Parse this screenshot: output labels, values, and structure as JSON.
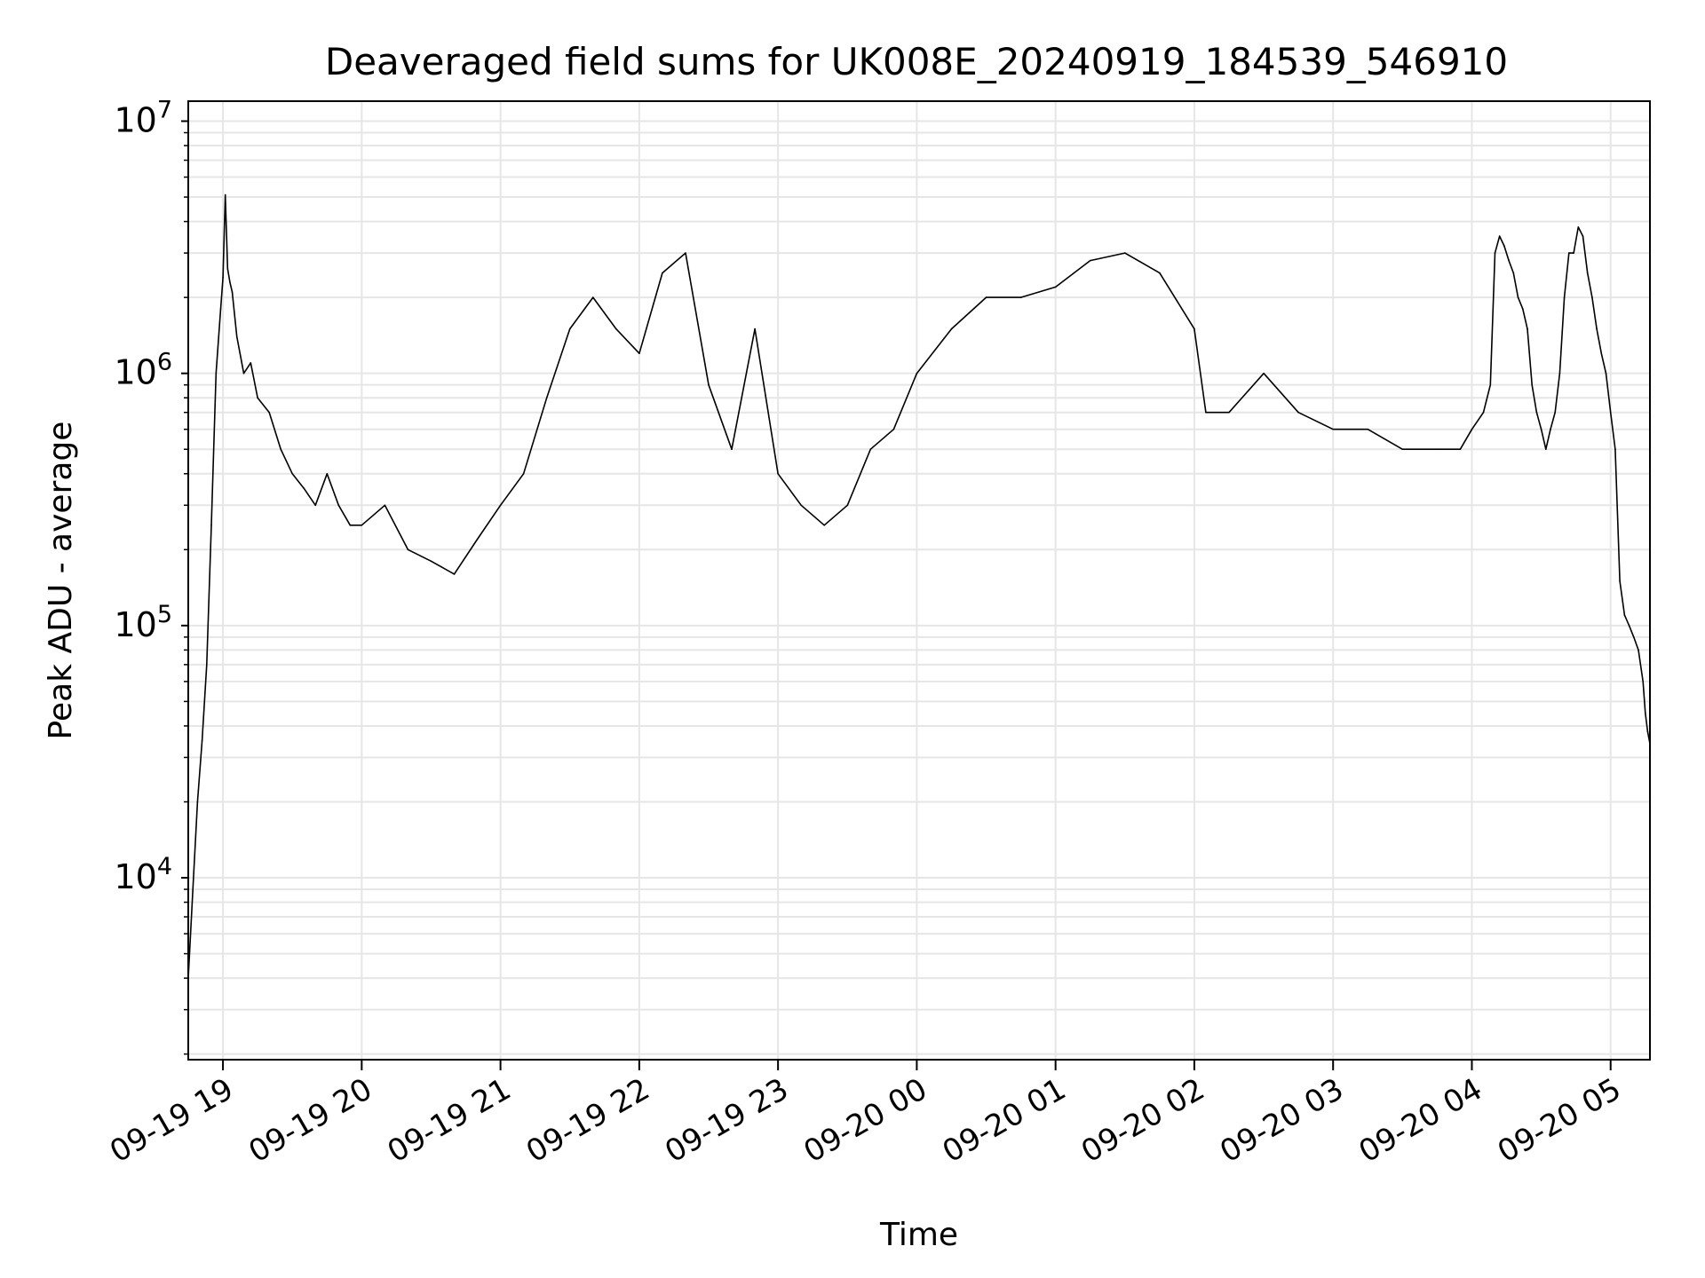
{
  "chart_data": {
    "type": "line",
    "title": "Deaveraged field sums for UK008E_20240919_184539_546910",
    "xlabel": "Time",
    "ylabel": "Peak ADU - average",
    "yscale": "log",
    "ylim": [
      1900,
      12000000
    ],
    "xlim": [
      "2024-09-19T18:45:00",
      "2024-09-20T05:17:00"
    ],
    "grid": true,
    "line_color": "#000000",
    "x_tick_labels": [
      "09-19 19",
      "09-19 20",
      "09-19 21",
      "09-19 22",
      "09-19 23",
      "09-20 00",
      "09-20 01",
      "09-20 02",
      "09-20 03",
      "09-20 04",
      "09-20 05"
    ],
    "x_ticks": [
      "2024-09-19T19:00:00",
      "2024-09-19T20:00:00",
      "2024-09-19T21:00:00",
      "2024-09-19T22:00:00",
      "2024-09-19T23:00:00",
      "2024-09-20T00:00:00",
      "2024-09-20T01:00:00",
      "2024-09-20T02:00:00",
      "2024-09-20T03:00:00",
      "2024-09-20T04:00:00",
      "2024-09-20T05:00:00"
    ],
    "y_ticks": [
      {
        "value": 10000,
        "base": "10",
        "exp": "4"
      },
      {
        "value": 100000,
        "base": "10",
        "exp": "5"
      },
      {
        "value": 1000000,
        "base": "10",
        "exp": "6"
      },
      {
        "value": 10000000,
        "base": "10",
        "exp": "7"
      }
    ],
    "series": [
      {
        "x": [
          "2024-09-19T18:45:00",
          "2024-09-19T18:47:00",
          "2024-09-19T18:49:00",
          "2024-09-19T18:51:00",
          "2024-09-19T18:53:00",
          "2024-09-19T18:55:00",
          "2024-09-19T18:57:00",
          "2024-09-19T18:59:00",
          "2024-09-19T19:00:00",
          "2024-09-19T19:01:00",
          "2024-09-19T19:02:00",
          "2024-09-19T19:03:00",
          "2024-09-19T19:04:00",
          "2024-09-19T19:06:00",
          "2024-09-19T19:09:00",
          "2024-09-19T19:12:00",
          "2024-09-19T19:15:00",
          "2024-09-19T19:20:00",
          "2024-09-19T19:25:00",
          "2024-09-19T19:30:00",
          "2024-09-19T19:35:00",
          "2024-09-19T19:40:00",
          "2024-09-19T19:45:00",
          "2024-09-19T19:50:00",
          "2024-09-19T19:55:00",
          "2024-09-19T20:00:00",
          "2024-09-19T20:10:00",
          "2024-09-19T20:20:00",
          "2024-09-19T20:30:00",
          "2024-09-19T20:40:00",
          "2024-09-19T20:50:00",
          "2024-09-19T21:00:00",
          "2024-09-19T21:10:00",
          "2024-09-19T21:20:00",
          "2024-09-19T21:30:00",
          "2024-09-19T21:40:00",
          "2024-09-19T21:50:00",
          "2024-09-19T22:00:00",
          "2024-09-19T22:10:00",
          "2024-09-19T22:20:00",
          "2024-09-19T22:30:00",
          "2024-09-19T22:40:00",
          "2024-09-19T22:50:00",
          "2024-09-19T23:00:00",
          "2024-09-19T23:10:00",
          "2024-09-19T23:20:00",
          "2024-09-19T23:30:00",
          "2024-09-19T23:40:00",
          "2024-09-19T23:50:00",
          "2024-09-20T00:00:00",
          "2024-09-20T00:15:00",
          "2024-09-20T00:30:00",
          "2024-09-20T00:45:00",
          "2024-09-20T01:00:00",
          "2024-09-20T01:15:00",
          "2024-09-20T01:30:00",
          "2024-09-20T01:45:00",
          "2024-09-20T02:00:00",
          "2024-09-20T02:05:00",
          "2024-09-20T02:15:00",
          "2024-09-20T02:30:00",
          "2024-09-20T02:45:00",
          "2024-09-20T03:00:00",
          "2024-09-20T03:15:00",
          "2024-09-20T03:30:00",
          "2024-09-20T03:45:00",
          "2024-09-20T03:55:00",
          "2024-09-20T04:00:00",
          "2024-09-20T04:05:00",
          "2024-09-20T04:08:00",
          "2024-09-20T04:10:00",
          "2024-09-20T04:12:00",
          "2024-09-20T04:14:00",
          "2024-09-20T04:16:00",
          "2024-09-20T04:18:00",
          "2024-09-20T04:20:00",
          "2024-09-20T04:22:00",
          "2024-09-20T04:24:00",
          "2024-09-20T04:26:00",
          "2024-09-20T04:28:00",
          "2024-09-20T04:30:00",
          "2024-09-20T04:32:00",
          "2024-09-20T04:34:00",
          "2024-09-20T04:36:00",
          "2024-09-20T04:38:00",
          "2024-09-20T04:40:00",
          "2024-09-20T04:42:00",
          "2024-09-20T04:44:00",
          "2024-09-20T04:46:00",
          "2024-09-20T04:48:00",
          "2024-09-20T04:50:00",
          "2024-09-20T04:52:00",
          "2024-09-20T04:54:00",
          "2024-09-20T04:56:00",
          "2024-09-20T04:58:00",
          "2024-09-20T05:00:00",
          "2024-09-20T05:02:00",
          "2024-09-20T05:04:00",
          "2024-09-20T05:06:00",
          "2024-09-20T05:08:00",
          "2024-09-20T05:10:00",
          "2024-09-20T05:12:00",
          "2024-09-20T05:14:00",
          "2024-09-20T05:15:00",
          "2024-09-20T05:16:00",
          "2024-09-20T05:17:00"
        ],
        "y": [
          4000,
          9000,
          20000,
          35000,
          70000,
          250000,
          1000000,
          1800000,
          2400000,
          5100000,
          2600000,
          2300000,
          2100000,
          1400000,
          1000000,
          1100000,
          800000,
          700000,
          500000,
          400000,
          350000,
          300000,
          400000,
          300000,
          250000,
          250000,
          300000,
          200000,
          180000,
          160000,
          220000,
          300000,
          400000,
          800000,
          1500000,
          2000000,
          1500000,
          1200000,
          2500000,
          3000000,
          900000,
          500000,
          1500000,
          400000,
          300000,
          250000,
          300000,
          500000,
          600000,
          1000000,
          1500000,
          2000000,
          2000000,
          2200000,
          2800000,
          3000000,
          2500000,
          1500000,
          700000,
          700000,
          1000000,
          700000,
          600000,
          600000,
          500000,
          500000,
          500000,
          600000,
          700000,
          900000,
          3000000,
          3500000,
          3200000,
          2800000,
          2500000,
          2000000,
          1800000,
          1500000,
          900000,
          700000,
          600000,
          500000,
          600000,
          700000,
          1000000,
          2000000,
          3000000,
          3000000,
          3800000,
          3500000,
          2500000,
          2000000,
          1500000,
          1200000,
          1000000,
          700000,
          500000,
          150000,
          110000,
          100000,
          90000,
          80000,
          60000,
          45000,
          38000,
          34000
        ]
      }
    ]
  }
}
